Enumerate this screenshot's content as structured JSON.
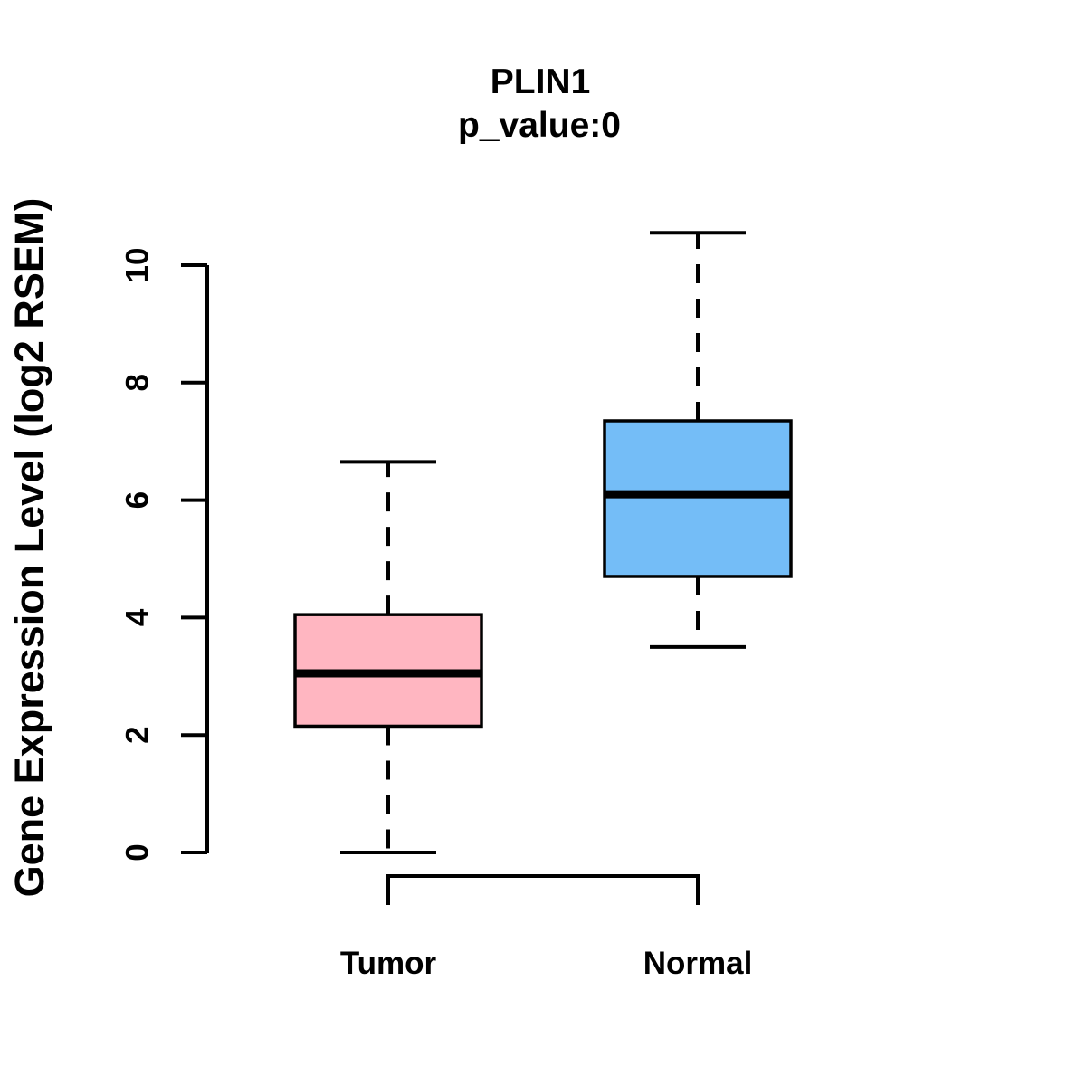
{
  "title": "PLIN1",
  "subtitle": "p_value:0",
  "colors": {
    "background": "#FFFFFF",
    "stroke": "#000000",
    "tumor_fill": "#FFB6C1",
    "normal_fill": "#74BDF7"
  },
  "chart_data": {
    "type": "boxplot",
    "title": "PLIN1",
    "subtitle": "p_value:0",
    "xlabel": "",
    "ylabel": "Gene Expression Level (log2 RSEM)",
    "ylim": [
      0,
      10
    ],
    "yticks": [
      0,
      2,
      4,
      6,
      8,
      10
    ],
    "ytick_labels": [
      "0",
      "2",
      "4",
      "6",
      "8",
      "10"
    ],
    "grid": false,
    "legend": "none",
    "categories": [
      "Tumor",
      "Normal"
    ],
    "series": [
      {
        "name": "Tumor",
        "min": 0.0,
        "q1": 2.15,
        "median": 3.05,
        "q3": 4.05,
        "max": 6.65,
        "fill": "#FFB6C1"
      },
      {
        "name": "Normal",
        "min": 3.5,
        "q1": 4.7,
        "median": 6.1,
        "q3": 7.35,
        "max": 10.55,
        "fill": "#74BDF7"
      }
    ]
  }
}
